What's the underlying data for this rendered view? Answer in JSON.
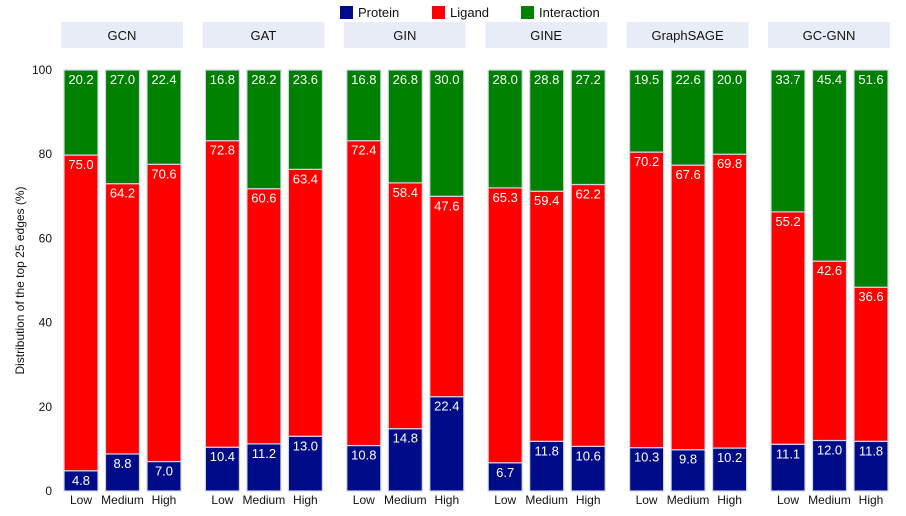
{
  "chart_data": {
    "type": "bar",
    "stacked": true,
    "ylabel": "Distribution of the top 25 edges (%)",
    "ylim": [
      0,
      100
    ],
    "yticks": [
      "0",
      "20",
      "40",
      "60",
      "80",
      "100"
    ],
    "legend_position": "top-center",
    "series": [
      {
        "name": "Protein",
        "color": "#000c87"
      },
      {
        "name": "Ligand",
        "color": "#ff0000"
      },
      {
        "name": "Interaction",
        "color": "#008000"
      }
    ],
    "categories": [
      "Low",
      "Medium",
      "High"
    ],
    "panels": [
      {
        "title": "GCN",
        "values": [
          [
            4.8,
            75.0,
            20.2
          ],
          [
            8.8,
            64.2,
            27.0
          ],
          [
            7.0,
            70.6,
            22.4
          ]
        ]
      },
      {
        "title": "GAT",
        "values": [
          [
            10.4,
            72.8,
            16.8
          ],
          [
            11.2,
            60.6,
            28.2
          ],
          [
            13.0,
            63.4,
            23.6
          ]
        ]
      },
      {
        "title": "GIN",
        "values": [
          [
            10.8,
            72.4,
            16.8
          ],
          [
            14.8,
            58.4,
            26.8
          ],
          [
            22.4,
            47.6,
            30.0
          ]
        ]
      },
      {
        "title": "GINE",
        "values": [
          [
            6.7,
            65.3,
            28.0
          ],
          [
            11.8,
            59.4,
            28.8
          ],
          [
            10.6,
            62.2,
            27.2
          ]
        ]
      },
      {
        "title": "GraphSAGE",
        "values": [
          [
            10.3,
            70.2,
            19.5
          ],
          [
            9.8,
            67.6,
            22.6
          ],
          [
            10.2,
            69.8,
            20.0
          ]
        ]
      },
      {
        "title": "GC-GNN",
        "values": [
          [
            11.1,
            55.2,
            33.7
          ],
          [
            12.0,
            42.6,
            45.4
          ],
          [
            11.8,
            36.6,
            51.6
          ]
        ]
      }
    ],
    "panel_header_color": "#e8ecf7",
    "bar_edge_color": "#cfd6e8"
  }
}
